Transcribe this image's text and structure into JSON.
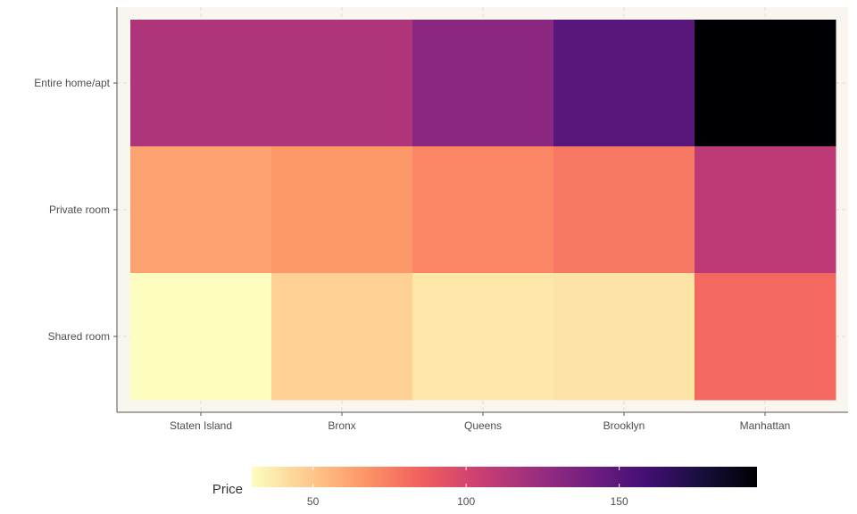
{
  "chart_data": {
    "type": "heatmap",
    "title": "",
    "xlabel": "",
    "ylabel": "",
    "x_categories": [
      "Staten Island",
      "Bronx",
      "Queens",
      "Brooklyn",
      "Manhattan"
    ],
    "y_categories": [
      "Entire home/apt",
      "Private room",
      "Shared room"
    ],
    "values": [
      [
        115,
        115,
        130,
        150,
        195
      ],
      [
        62,
        66,
        72,
        77,
        110
      ],
      [
        30,
        46,
        38,
        39,
        82
      ]
    ],
    "legend": {
      "title": "Price",
      "ticks": [
        50,
        100,
        150
      ],
      "range": [
        30,
        195
      ],
      "position": "bottom",
      "palette": "magma-reversed"
    },
    "colors": {
      "panel_background": "#f9f5ef",
      "gridline": "#e3ddd4",
      "axis_line": "#555555",
      "low": "#fcfdbf",
      "high": "#000004"
    },
    "grid": true
  }
}
